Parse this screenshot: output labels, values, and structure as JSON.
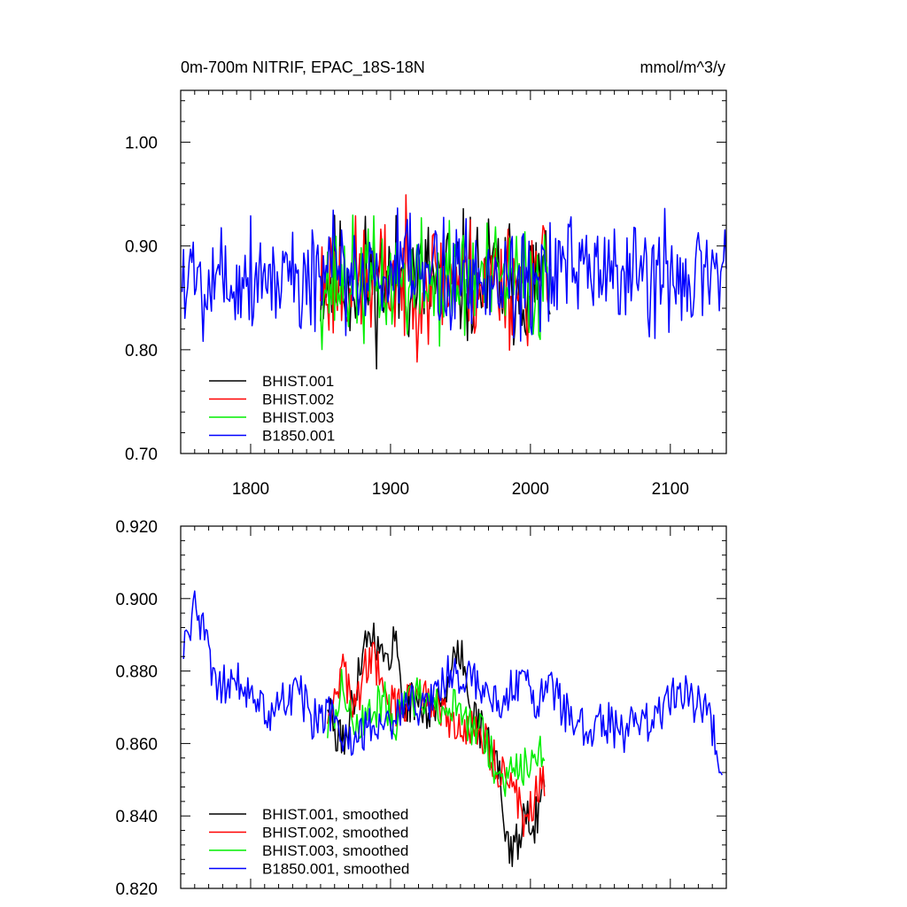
{
  "header": {
    "title_left": "0m-700m NITRIF, EPAC_18S-18N",
    "title_right": "mmol/m^3/y"
  },
  "chart_data": [
    {
      "type": "line",
      "xlim": [
        1750,
        2140
      ],
      "ylim": [
        0.7,
        1.05
      ],
      "xticks": [
        1800,
        1900,
        2000,
        2100
      ],
      "xtick_labels": [
        "1800",
        "1900",
        "2000",
        "2100"
      ],
      "yticks": [
        0.7,
        0.8,
        0.9,
        1.0
      ],
      "ytick_labels": [
        "0.70",
        "0.80",
        "0.90",
        "1.00"
      ],
      "grid": false,
      "legend_position": "bottom-left",
      "series": [
        {
          "name": "BHIST.001",
          "color": "#000000",
          "x_start": 1850,
          "x_end": 2014,
          "mean": 0.867,
          "amp": 0.048,
          "seed": 11
        },
        {
          "name": "BHIST.002",
          "color": "#ff0000",
          "x_start": 1850,
          "x_end": 2014,
          "mean": 0.866,
          "amp": 0.046,
          "seed": 23
        },
        {
          "name": "BHIST.003",
          "color": "#00ee00",
          "x_start": 1850,
          "x_end": 2014,
          "mean": 0.865,
          "amp": 0.044,
          "seed": 37
        },
        {
          "name": "B1850.001",
          "color": "#0000ff",
          "x_start": 1751,
          "x_end": 2140,
          "mean": 0.872,
          "amp": 0.044,
          "seed": 5
        }
      ]
    },
    {
      "type": "line",
      "xlim": [
        1750,
        2140
      ],
      "ylim": [
        0.82,
        0.92
      ],
      "xticks": [
        1800,
        1900,
        2000,
        2100
      ],
      "yticks": [
        0.82,
        0.84,
        0.86,
        0.88,
        0.9,
        0.92
      ],
      "ytick_labels": [
        "0.820",
        "0.840",
        "0.860",
        "0.880",
        "0.900",
        "0.920"
      ],
      "grid": false,
      "legend_position": "bottom-left",
      "series": [
        {
          "name": "BHIST.001, smoothed",
          "color": "#000000",
          "x_start": 1855,
          "x_end": 2010,
          "seed": 11,
          "anchors": [
            [
              1855,
              0.872
            ],
            [
              1862,
              0.86
            ],
            [
              1870,
              0.864
            ],
            [
              1880,
              0.887
            ],
            [
              1888,
              0.891
            ],
            [
              1896,
              0.881
            ],
            [
              1903,
              0.89
            ],
            [
              1910,
              0.87
            ],
            [
              1920,
              0.872
            ],
            [
              1930,
              0.868
            ],
            [
              1942,
              0.878
            ],
            [
              1950,
              0.885
            ],
            [
              1960,
              0.868
            ],
            [
              1970,
              0.86
            ],
            [
              1978,
              0.852
            ],
            [
              1985,
              0.828
            ],
            [
              1990,
              0.832
            ],
            [
              1997,
              0.842
            ],
            [
              2003,
              0.838
            ],
            [
              2010,
              0.848
            ]
          ]
        },
        {
          "name": "BHIST.002, smoothed",
          "color": "#ff0000",
          "x_start": 1855,
          "x_end": 2010,
          "seed": 23,
          "anchors": [
            [
              1855,
              0.868
            ],
            [
              1865,
              0.88
            ],
            [
              1875,
              0.87
            ],
            [
              1885,
              0.885
            ],
            [
              1893,
              0.878
            ],
            [
              1902,
              0.87
            ],
            [
              1910,
              0.87
            ],
            [
              1920,
              0.876
            ],
            [
              1930,
              0.872
            ],
            [
              1940,
              0.866
            ],
            [
              1950,
              0.862
            ],
            [
              1960,
              0.866
            ],
            [
              1970,
              0.858
            ],
            [
              1980,
              0.852
            ],
            [
              1988,
              0.848
            ],
            [
              1996,
              0.838
            ],
            [
              2003,
              0.845
            ],
            [
              2010,
              0.85
            ]
          ]
        },
        {
          "name": "BHIST.003, smoothed",
          "color": "#00ee00",
          "x_start": 1855,
          "x_end": 2010,
          "seed": 37,
          "anchors": [
            [
              1855,
              0.864
            ],
            [
              1865,
              0.875
            ],
            [
              1875,
              0.866
            ],
            [
              1885,
              0.868
            ],
            [
              1895,
              0.872
            ],
            [
              1905,
              0.866
            ],
            [
              1915,
              0.872
            ],
            [
              1925,
              0.874
            ],
            [
              1935,
              0.868
            ],
            [
              1945,
              0.87
            ],
            [
              1955,
              0.866
            ],
            [
              1965,
              0.862
            ],
            [
              1975,
              0.854
            ],
            [
              1985,
              0.85
            ],
            [
              1995,
              0.854
            ],
            [
              2003,
              0.858
            ],
            [
              2010,
              0.859
            ]
          ]
        },
        {
          "name": "B1850.001, smoothed",
          "color": "#0000ff",
          "x_start": 1752,
          "x_end": 2137,
          "seed": 5,
          "anchors": [
            [
              1752,
              0.886
            ],
            [
              1760,
              0.897
            ],
            [
              1768,
              0.888
            ],
            [
              1776,
              0.874
            ],
            [
              1785,
              0.878
            ],
            [
              1795,
              0.876
            ],
            [
              1805,
              0.872
            ],
            [
              1815,
              0.868
            ],
            [
              1825,
              0.872
            ],
            [
              1835,
              0.874
            ],
            [
              1845,
              0.866
            ],
            [
              1855,
              0.87
            ],
            [
              1865,
              0.862
            ],
            [
              1875,
              0.862
            ],
            [
              1885,
              0.864
            ],
            [
              1895,
              0.866
            ],
            [
              1905,
              0.868
            ],
            [
              1915,
              0.872
            ],
            [
              1925,
              0.87
            ],
            [
              1935,
              0.876
            ],
            [
              1945,
              0.88
            ],
            [
              1955,
              0.878
            ],
            [
              1965,
              0.876
            ],
            [
              1975,
              0.872
            ],
            [
              1985,
              0.874
            ],
            [
              1995,
              0.876
            ],
            [
              2005,
              0.872
            ],
            [
              2015,
              0.876
            ],
            [
              2025,
              0.868
            ],
            [
              2035,
              0.866
            ],
            [
              2045,
              0.864
            ],
            [
              2055,
              0.866
            ],
            [
              2065,
              0.862
            ],
            [
              2075,
              0.866
            ],
            [
              2085,
              0.866
            ],
            [
              2095,
              0.87
            ],
            [
              2105,
              0.876
            ],
            [
              2115,
              0.872
            ],
            [
              2125,
              0.87
            ],
            [
              2137,
              0.855
            ]
          ]
        }
      ]
    }
  ]
}
